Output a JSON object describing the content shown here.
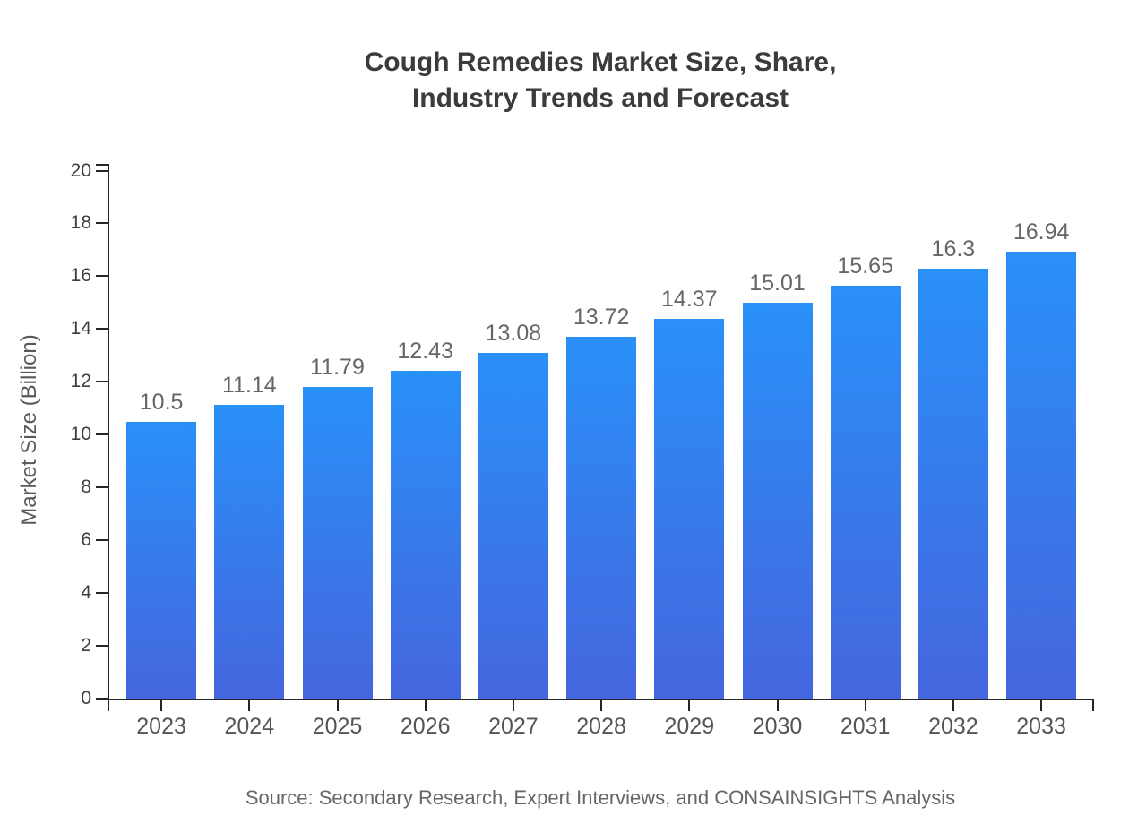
{
  "page": {
    "background": "#ffffff"
  },
  "chart_data": {
    "type": "bar",
    "title": "Cough Remedies Market Size, Share, Industry Trends and Forecast",
    "title_lines": [
      "Cough Remedies Market Size, Share,",
      "Industry Trends and Forecast"
    ],
    "categories": [
      "2023",
      "2024",
      "2025",
      "2026",
      "2027",
      "2028",
      "2029",
      "2030",
      "2031",
      "2032",
      "2033"
    ],
    "values": [
      10.5,
      11.14,
      11.79,
      12.43,
      13.08,
      13.72,
      14.37,
      15.01,
      15.65,
      16.3,
      16.94
    ],
    "value_labels": [
      "10.5",
      "11.14",
      "11.79",
      "12.43",
      "13.08",
      "13.72",
      "14.37",
      "15.01",
      "15.65",
      "16.3",
      "16.94"
    ],
    "xlabel": "",
    "ylabel": "Market Size (Billion)",
    "ylim": [
      0,
      20
    ],
    "ytick_step": 2,
    "ytick_labels": [
      "0",
      "2",
      "4",
      "6",
      "8",
      "10",
      "12",
      "14",
      "16",
      "18",
      "20"
    ],
    "grid": false,
    "legend": "none",
    "bar_color_top": "#2990F8",
    "bar_color_bottom": "#4566DE",
    "axis_color": "#262626",
    "source": "Source: Secondary Research, Expert Interviews, and CONSAINSIGHTS Analysis"
  }
}
